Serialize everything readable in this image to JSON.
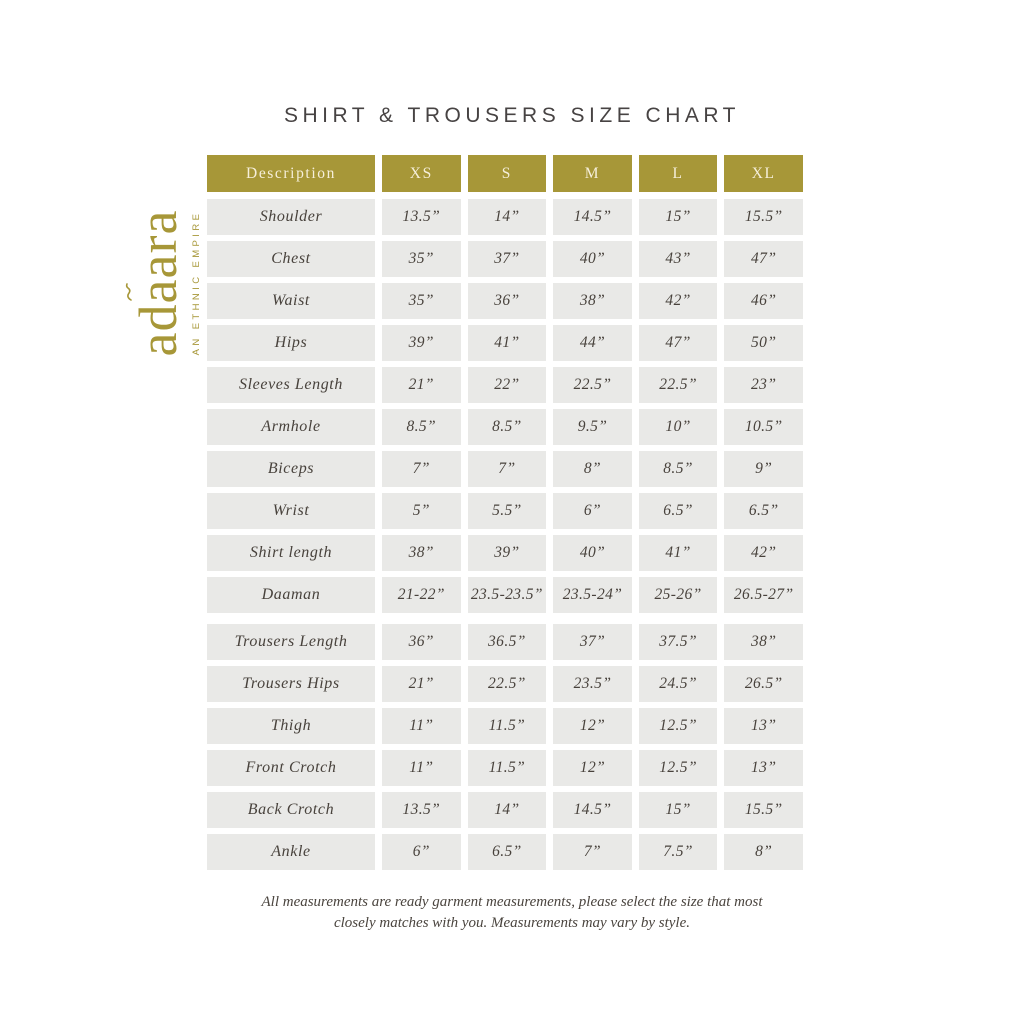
{
  "page": {
    "title": "SHIRT & TROUSERS SIZE CHART",
    "footnote_line1": "All measurements are ready garment measurements, please select the size that most",
    "footnote_line2": "closely matches with you. Measurements may vary by style."
  },
  "logo": {
    "brand": "adaara",
    "brand_prefix": "ad",
    "brand_accented": "a",
    "brand_suffix": "ara",
    "tagline": "AN ETHNIC EMPIRE"
  },
  "colors": {
    "gold": "#a79738",
    "header_text": "#f6efda",
    "cell_bg": "#e9e9e7",
    "cell_text": "#48423c",
    "title_text": "#474343"
  },
  "chart_data": {
    "type": "table",
    "columns": [
      "Description",
      "XS",
      "S",
      "M",
      "L",
      "XL"
    ],
    "rows": [
      {
        "label": "Shoulder",
        "values": [
          "13.5”",
          "14”",
          "14.5”",
          "15”",
          "15.5”"
        ]
      },
      {
        "label": "Chest",
        "values": [
          "35”",
          "37”",
          "40”",
          "43”",
          "47”"
        ]
      },
      {
        "label": "Waist",
        "values": [
          "35”",
          "36”",
          "38”",
          "42”",
          "46”"
        ]
      },
      {
        "label": "Hips",
        "values": [
          "39”",
          "41”",
          "44”",
          "47”",
          "50”"
        ]
      },
      {
        "label": "Sleeves Length",
        "values": [
          "21”",
          "22”",
          "22.5”",
          "22.5”",
          "23”"
        ]
      },
      {
        "label": "Armhole",
        "values": [
          "8.5”",
          "8.5”",
          "9.5”",
          "10”",
          "10.5”"
        ]
      },
      {
        "label": "Biceps",
        "values": [
          "7”",
          "7”",
          "8”",
          "8.5”",
          "9”"
        ]
      },
      {
        "label": "Wrist",
        "values": [
          "5”",
          "5.5”",
          "6”",
          "6.5”",
          "6.5”"
        ]
      },
      {
        "label": "Shirt length",
        "values": [
          "38”",
          "39”",
          "40”",
          "41”",
          "42”"
        ]
      },
      {
        "label": "Daaman",
        "values": [
          "21-22”",
          "23.5-23.5”",
          "23.5-24”",
          "25-26”",
          "26.5-27”"
        ]
      },
      {
        "label": "Trousers Length",
        "values": [
          "36”",
          "36.5”",
          "37”",
          "37.5”",
          "38”"
        ]
      },
      {
        "label": "Trousers Hips",
        "values": [
          "21”",
          "22.5”",
          "23.5”",
          "24.5”",
          "26.5”"
        ]
      },
      {
        "label": "Thigh",
        "values": [
          "11”",
          "11.5”",
          "12”",
          "12.5”",
          "13”"
        ]
      },
      {
        "label": "Front Crotch",
        "values": [
          "11”",
          "11.5”",
          "12”",
          "12.5”",
          "13”"
        ]
      },
      {
        "label": "Back Crotch",
        "values": [
          "13.5”",
          "14”",
          "14.5”",
          "15”",
          "15.5”"
        ]
      },
      {
        "label": "Ankle",
        "values": [
          "6”",
          "6.5”",
          "7”",
          "7.5”",
          "8”"
        ]
      }
    ],
    "trousers_section_start_index": 10,
    "title": "SHIRT & TROUSERS SIZE CHART",
    "legend_position": "none",
    "grid": false
  }
}
